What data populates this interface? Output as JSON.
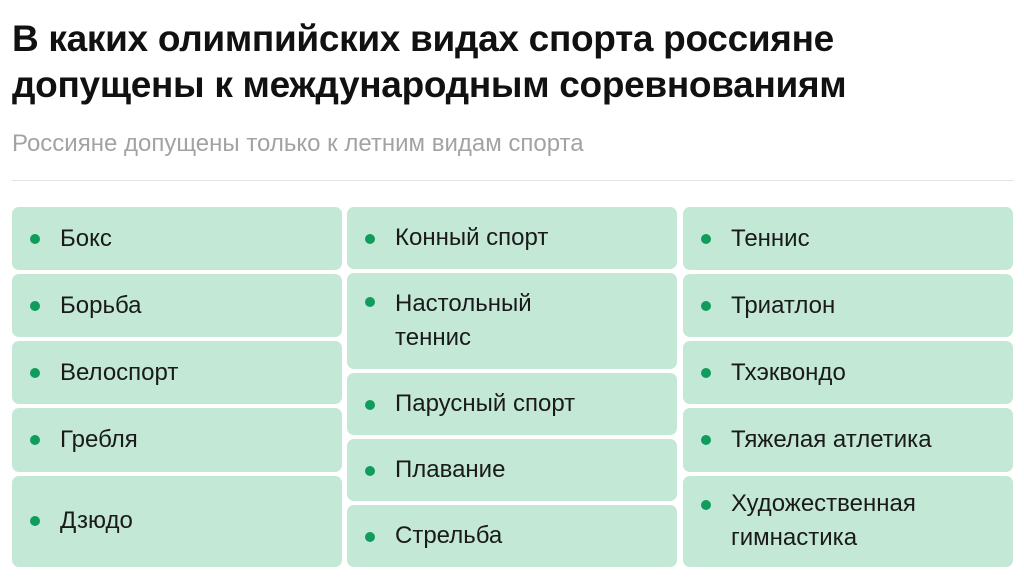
{
  "title": "В каких олимпийских видах спорта россияне допущены к международным соревнованиям",
  "subtitle": "Россияне допущены только к летним видам спорта",
  "colors": {
    "card_background": "#c3e8d6",
    "bullet": "#0f9c5c",
    "subtitle": "#a3a3a3"
  },
  "columns": [
    {
      "items": [
        "Бокс",
        "Борьба",
        "Велоспорт",
        "Гребля",
        "Дзюдо"
      ]
    },
    {
      "items": [
        "Конный спорт",
        "Настольный теннис",
        "Парусный спорт",
        "Плавание",
        "Стрельба"
      ]
    },
    {
      "items": [
        "Теннис",
        "Триатлон",
        "Тхэквондо",
        "Тяжелая атлетика",
        "Художественная гимнастика"
      ]
    }
  ]
}
